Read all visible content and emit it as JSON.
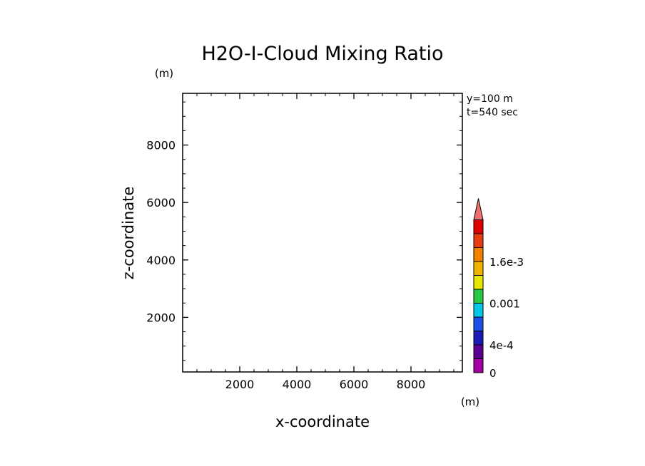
{
  "chart_data": {
    "type": "heatmap",
    "title": "H2O-I-Cloud Mixing Ratio",
    "xlabel": "x-coordinate",
    "ylabel": "z-coordinate",
    "x_unit": "(m)",
    "y_unit": "(m)",
    "xlim": [
      0,
      9800
    ],
    "ylim": [
      100,
      9800
    ],
    "x_ticks": [
      2000,
      4000,
      6000,
      8000
    ],
    "y_ticks": [
      2000,
      4000,
      6000,
      8000
    ],
    "x_tick_labels": [
      "2000",
      "4000",
      "6000",
      "8000"
    ],
    "y_tick_labels": [
      "2000",
      "4000",
      "6000",
      "8000"
    ],
    "annotations": [
      "y=100 m",
      "t=540 sec"
    ],
    "field_values": [],
    "colorbar": {
      "levels": [
        0,
        0.0002,
        0.0004,
        0.0006,
        0.0008,
        0.001,
        0.0012,
        0.0014,
        0.0016,
        0.0018,
        0.002
      ],
      "colors": [
        "#a000a0",
        "#5a0090",
        "#1a1ab4",
        "#1e50e6",
        "#00c8e6",
        "#28c846",
        "#e6e600",
        "#f0b400",
        "#f08200",
        "#e63c14",
        "#dc0000"
      ],
      "overflow_color": "#f07070",
      "tick_values": [
        0,
        0.0004,
        0.001,
        0.0016
      ],
      "tick_labels": [
        "0",
        "4e-4",
        "0.001",
        "1.6e-3"
      ]
    }
  }
}
